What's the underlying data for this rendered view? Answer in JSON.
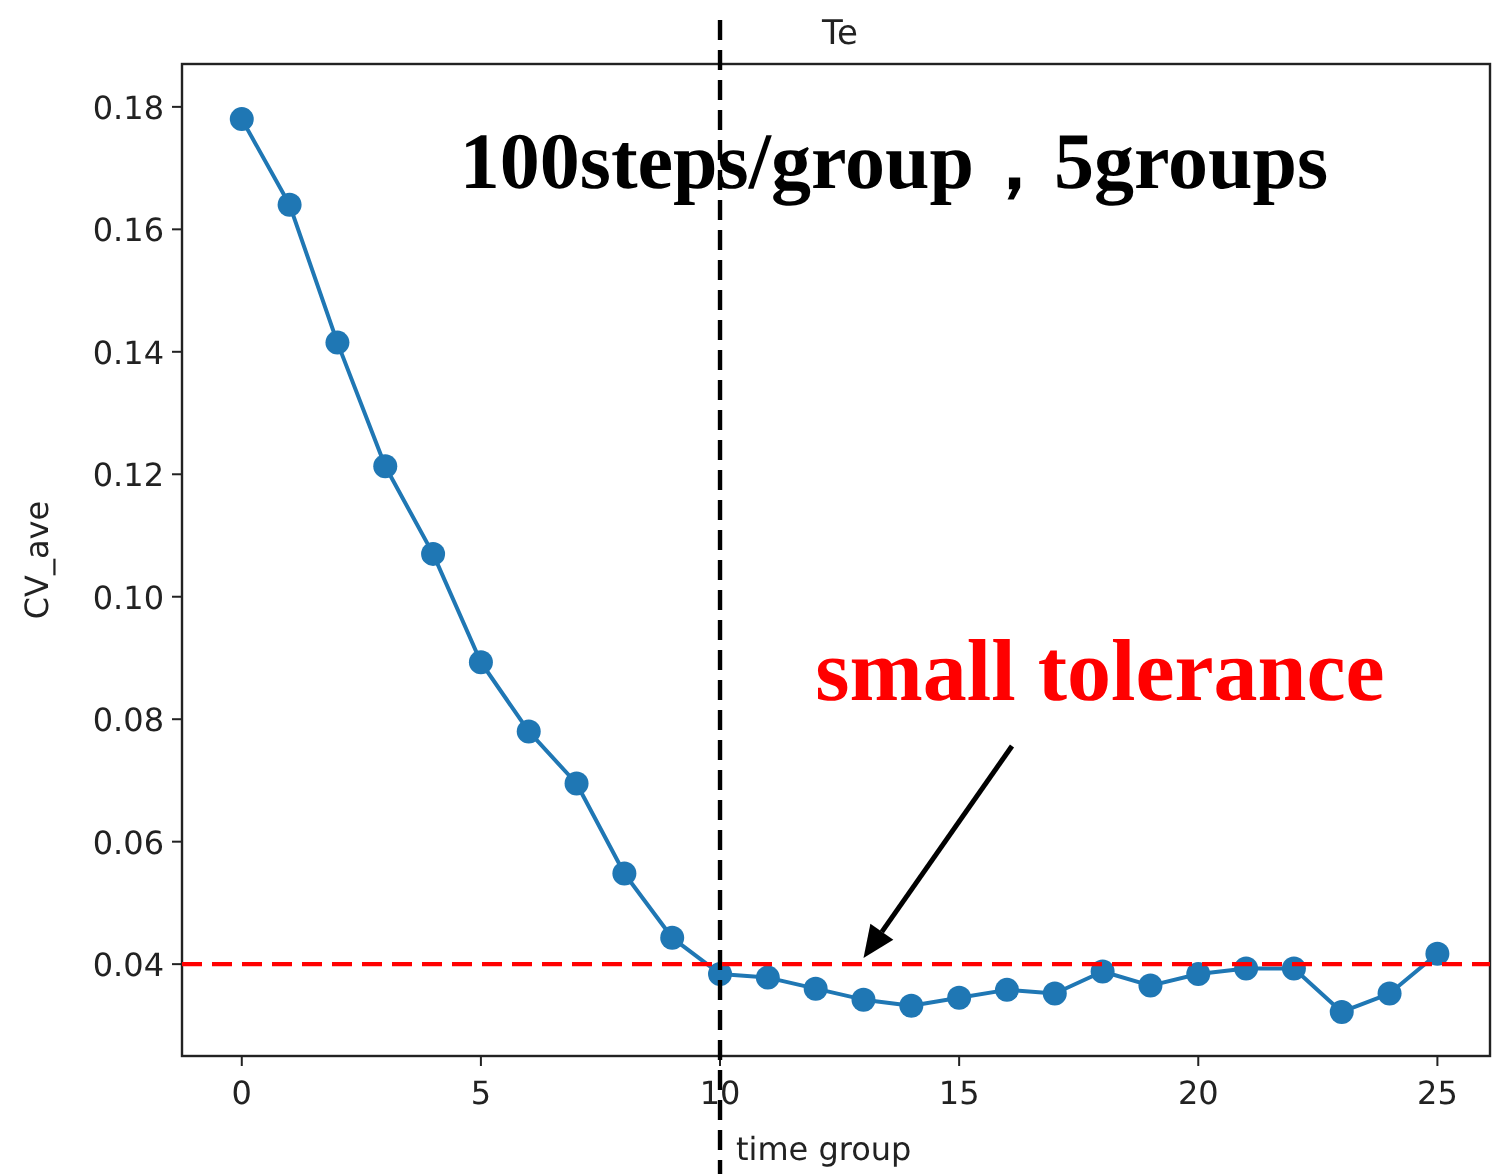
{
  "chart_data": {
    "type": "line",
    "title": "Te",
    "xlabel": "time group",
    "ylabel": "CV_ave",
    "x": [
      0,
      1,
      2,
      3,
      4,
      5,
      6,
      7,
      8,
      9,
      10,
      11,
      12,
      13,
      14,
      15,
      16,
      17,
      18,
      19,
      20,
      21,
      22,
      23,
      24,
      25
    ],
    "series": [
      {
        "color": "#1f77b4",
        "values": [
          0.178,
          0.164,
          0.1415,
          0.1213,
          0.107,
          0.0893,
          0.078,
          0.0695,
          0.0548,
          0.0443,
          0.0384,
          0.0378,
          0.036,
          0.0342,
          0.0332,
          0.0345,
          0.0358,
          0.0352,
          0.0388,
          0.0365,
          0.0384,
          0.0393,
          0.0393,
          0.0322,
          0.0352,
          0.0417
        ]
      }
    ],
    "xlim": [
      -1.25,
      26.1
    ],
    "ylim": [
      0.025,
      0.187
    ],
    "xticks": [
      0,
      5,
      10,
      15,
      20,
      25
    ],
    "yticks": [
      {
        "value": 0.04,
        "label": "0.04"
      },
      {
        "value": 0.06,
        "label": "0.06"
      },
      {
        "value": 0.08,
        "label": "0.08"
      },
      {
        "value": 0.1,
        "label": "0.10"
      },
      {
        "value": 0.12,
        "label": "0.12"
      },
      {
        "value": 0.14,
        "label": "0.14"
      },
      {
        "value": 0.16,
        "label": "0.16"
      },
      {
        "value": 0.18,
        "label": "0.18"
      }
    ],
    "ref_lines": [
      {
        "axis": "x",
        "value": 10,
        "color": "#000000",
        "line_style": "dashed"
      },
      {
        "axis": "y",
        "value": 0.04,
        "color": "#ff0000",
        "line_style": "dashed"
      }
    ],
    "annotations": [
      "100steps/group，5groups",
      {
        "text": "small tolerance",
        "x": 13,
        "y": 0.041
      }
    ],
    "marker": "circle",
    "line_style": "solid",
    "grid": false
  }
}
